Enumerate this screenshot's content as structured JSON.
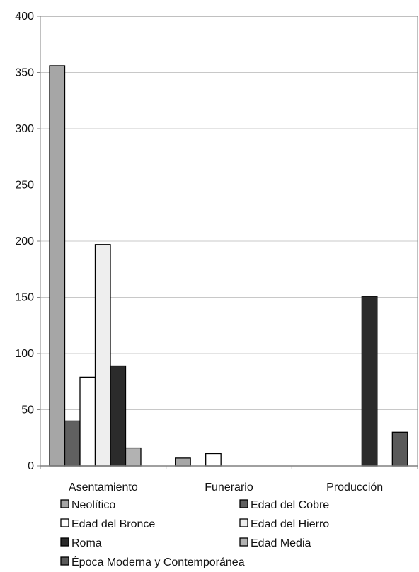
{
  "chart_data": {
    "type": "bar",
    "title": "",
    "xlabel": "",
    "ylabel": "",
    "ylim": [
      0,
      400
    ],
    "yticks": [
      0,
      50,
      100,
      150,
      200,
      250,
      300,
      350,
      400
    ],
    "grid": "horizontal",
    "legend_position": "bottom",
    "categories": [
      "Asentamiento",
      "Funerario",
      "Producción"
    ],
    "series": [
      {
        "name": "Neolítico",
        "color": "#a6a6a6",
        "values": [
          356,
          7,
          0
        ]
      },
      {
        "name": "Edad del Cobre",
        "color": "#606060",
        "values": [
          40,
          0,
          0
        ]
      },
      {
        "name": "Edad del Bronce",
        "color": "#ffffff",
        "values": [
          79,
          11,
          0
        ]
      },
      {
        "name": "Edad del Hierro",
        "color": "#eeeeee",
        "values": [
          197,
          0,
          0
        ]
      },
      {
        "name": "Roma",
        "color": "#2b2b2b",
        "values": [
          89,
          0,
          151
        ]
      },
      {
        "name": "Edad Media",
        "color": "#b2b2b2",
        "values": [
          16,
          0,
          0
        ]
      },
      {
        "name": "Época Moderna y Contemporánea",
        "color": "#5a5a5a",
        "values": [
          0,
          0,
          30
        ]
      }
    ]
  }
}
